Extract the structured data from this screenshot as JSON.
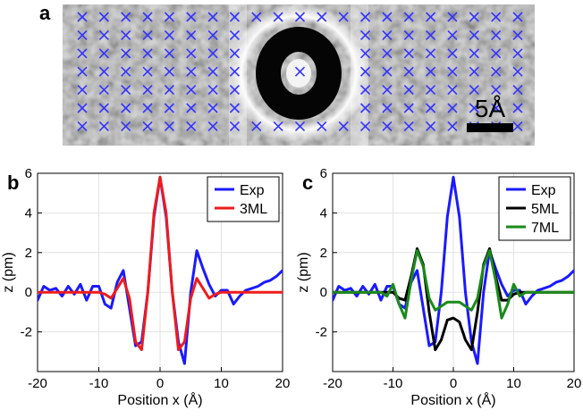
{
  "panel_a": {
    "letter": "a",
    "scale_bar_label": "5Å",
    "marker_color": "#3333ff"
  },
  "chart_data": [
    {
      "type": "line",
      "panel": "b",
      "xlabel": "Position x (Å)",
      "ylabel": "z (pm)",
      "xlim": [
        -20,
        20
      ],
      "ylim": [
        -4,
        6
      ],
      "xticks": [
        -20,
        -10,
        0,
        10,
        20
      ],
      "yticks": [
        -2,
        0,
        2,
        4,
        6
      ],
      "grid": true,
      "legend_position": "top-right",
      "series": [
        {
          "name": "Exp",
          "color": "#1a1aff",
          "x": [
            -20,
            -19,
            -18,
            -17,
            -16,
            -15,
            -14,
            -13,
            -12,
            -11,
            -10,
            -9,
            -8,
            -7,
            -6,
            -5,
            -4,
            -3,
            -2,
            -1,
            0,
            1,
            2,
            3,
            4,
            5,
            6,
            7,
            8,
            9,
            10,
            11,
            12,
            13,
            14,
            15,
            16,
            17,
            18,
            19,
            20
          ],
          "y": [
            -0.4,
            0.3,
            0.1,
            0.2,
            -0.2,
            0.3,
            -0.1,
            0.4,
            -0.4,
            0.3,
            0.3,
            -0.6,
            -0.8,
            0.5,
            1.1,
            -0.8,
            -2.7,
            -2.5,
            0.0,
            3.8,
            5.8,
            3.8,
            0.0,
            -2.5,
            -3.6,
            0.0,
            2.1,
            1.2,
            0.4,
            -0.2,
            0.1,
            0.1,
            -0.6,
            -0.2,
            0.1,
            0.2,
            0.3,
            0.5,
            0.6,
            0.8,
            1.1
          ]
        },
        {
          "name": "3ML",
          "color": "#ee1c1c",
          "x": [
            -20,
            -19,
            -18,
            -17,
            -16,
            -15,
            -14,
            -13,
            -12,
            -11,
            -10,
            -9,
            -8,
            -7,
            -6,
            -5,
            -4,
            -3,
            -2,
            -1,
            0,
            1,
            2,
            3,
            4,
            5,
            6,
            7,
            8,
            9,
            10,
            11,
            12,
            13,
            14,
            15,
            16,
            17,
            18,
            19,
            20
          ],
          "y": [
            0,
            0,
            0,
            0,
            0,
            0,
            0,
            0,
            0,
            0,
            0,
            -0.1,
            -0.3,
            0.2,
            0.7,
            -0.3,
            -2.5,
            -2.9,
            0.0,
            4.0,
            5.8,
            4.0,
            0.0,
            -2.9,
            -2.5,
            -0.3,
            0.7,
            0.2,
            -0.3,
            -0.1,
            0,
            0,
            0,
            0,
            0,
            0,
            0,
            0,
            0,
            0,
            0
          ]
        }
      ]
    },
    {
      "type": "line",
      "panel": "c",
      "xlabel": "Position x (Å)",
      "ylabel": "z (pm)",
      "xlim": [
        -20,
        20
      ],
      "ylim": [
        -4,
        6
      ],
      "xticks": [
        -20,
        -10,
        0,
        10,
        20
      ],
      "yticks": [
        -2,
        0,
        2,
        4,
        6
      ],
      "grid": true,
      "legend_position": "top-right",
      "series": [
        {
          "name": "Exp",
          "color": "#1a1aff",
          "x": [
            -20,
            -19,
            -18,
            -17,
            -16,
            -15,
            -14,
            -13,
            -12,
            -11,
            -10,
            -9,
            -8,
            -7,
            -6,
            -5,
            -4,
            -3,
            -2,
            -1,
            0,
            1,
            2,
            3,
            4,
            5,
            6,
            7,
            8,
            9,
            10,
            11,
            12,
            13,
            14,
            15,
            16,
            17,
            18,
            19,
            20
          ],
          "y": [
            -0.4,
            0.3,
            0.1,
            0.2,
            -0.2,
            0.3,
            -0.1,
            0.4,
            -0.4,
            0.3,
            0.3,
            -0.6,
            -0.8,
            0.5,
            1.1,
            -0.8,
            -2.7,
            -2.5,
            0.0,
            3.8,
            5.8,
            3.8,
            0.0,
            -2.5,
            -3.6,
            0.0,
            2.1,
            1.2,
            0.4,
            -0.2,
            0.1,
            0.1,
            -0.6,
            -0.2,
            0.1,
            0.2,
            0.3,
            0.5,
            0.6,
            0.8,
            1.1
          ]
        },
        {
          "name": "5ML",
          "color": "#000000",
          "x": [
            -20,
            -19,
            -18,
            -17,
            -16,
            -15,
            -14,
            -13,
            -12,
            -11,
            -10,
            -9,
            -8,
            -7,
            -6,
            -5,
            -4,
            -3,
            -2,
            -1,
            0,
            1,
            2,
            3,
            4,
            5,
            6,
            7,
            8,
            9,
            10,
            11,
            12,
            13,
            14,
            15,
            16,
            17,
            18,
            19,
            20
          ],
          "y": [
            0,
            0,
            0,
            0,
            0,
            0,
            0,
            0,
            0,
            0,
            0,
            -0.3,
            -0.4,
            0.8,
            2.2,
            1.4,
            -1.0,
            -2.9,
            -2.4,
            -1.4,
            -1.3,
            -1.5,
            -2.4,
            -2.9,
            -1.0,
            1.4,
            2.2,
            0.8,
            -0.4,
            -0.4,
            -0.1,
            0,
            0,
            0,
            0,
            0,
            0,
            0,
            0,
            0,
            0
          ]
        },
        {
          "name": "7ML",
          "color": "#1a8a1a",
          "x": [
            -20,
            -19,
            -18,
            -17,
            -16,
            -15,
            -14,
            -13,
            -12,
            -11,
            -10,
            -9,
            -8,
            -7,
            -6,
            -5,
            -4,
            -3,
            -2,
            -1,
            0,
            1,
            2,
            3,
            4,
            5,
            6,
            7,
            8,
            9,
            10,
            11,
            12,
            13,
            14,
            15,
            16,
            17,
            18,
            19,
            20
          ],
          "y": [
            0,
            0,
            0,
            0,
            0,
            0,
            0,
            0,
            0,
            -0.2,
            0.4,
            -0.6,
            -1.3,
            0.6,
            2.1,
            1.3,
            -0.3,
            -0.9,
            -0.7,
            -0.5,
            -0.5,
            -0.5,
            -0.7,
            -0.9,
            -0.3,
            1.3,
            2.1,
            0.6,
            -1.3,
            -0.6,
            0.4,
            -0.2,
            0,
            0,
            0,
            0,
            0,
            0,
            0,
            0,
            0
          ]
        }
      ]
    }
  ]
}
